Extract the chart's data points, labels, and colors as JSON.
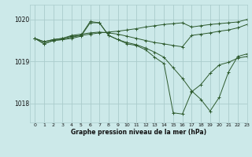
{
  "bg_color": "#cce9e9",
  "grid_color": "#aacccc",
  "line_color": "#2d5a2d",
  "title": "Graphe pression niveau de la mer (hPa)",
  "xlim": [
    -0.5,
    23
  ],
  "ylim": [
    1017.55,
    1020.35
  ],
  "yticks": [
    1018,
    1019,
    1020
  ],
  "xticks": [
    0,
    1,
    2,
    3,
    4,
    5,
    6,
    7,
    8,
    9,
    10,
    11,
    12,
    13,
    14,
    15,
    16,
    17,
    18,
    19,
    20,
    21,
    22,
    23
  ],
  "series": [
    [
      1019.55,
      1019.47,
      1019.52,
      1019.55,
      1019.6,
      1019.62,
      1019.65,
      1019.68,
      1019.7,
      1019.72,
      1019.75,
      1019.78,
      1019.82,
      1019.85,
      1019.88,
      1019.9,
      1019.92,
      1019.82,
      1019.85,
      1019.88,
      1019.9,
      1019.92,
      1019.94,
      1020.0
    ],
    [
      1019.55,
      1019.47,
      1019.52,
      1019.55,
      1019.62,
      1019.65,
      1019.68,
      1019.7,
      1019.68,
      1019.65,
      1019.6,
      1019.55,
      1019.5,
      1019.45,
      1019.42,
      1019.38,
      1019.35,
      1019.62,
      1019.65,
      1019.68,
      1019.72,
      1019.75,
      1019.8,
      1019.88
    ],
    [
      1019.55,
      1019.42,
      1019.5,
      1019.52,
      1019.58,
      1019.62,
      1019.95,
      1019.92,
      1019.62,
      1019.52,
      1019.45,
      1019.4,
      1019.32,
      1019.22,
      1019.1,
      1018.85,
      1018.6,
      1018.3,
      1018.1,
      1017.82,
      1018.15,
      1018.75,
      1019.12,
      1019.18
    ],
    [
      1019.55,
      1019.42,
      1019.5,
      1019.52,
      1019.55,
      1019.6,
      1019.92,
      1019.92,
      1019.62,
      1019.52,
      1019.42,
      1019.38,
      1019.28,
      1019.1,
      1018.95,
      1017.78,
      1017.75,
      1018.28,
      1018.45,
      1018.72,
      1018.92,
      1018.98,
      1019.08,
      1019.12
    ]
  ]
}
